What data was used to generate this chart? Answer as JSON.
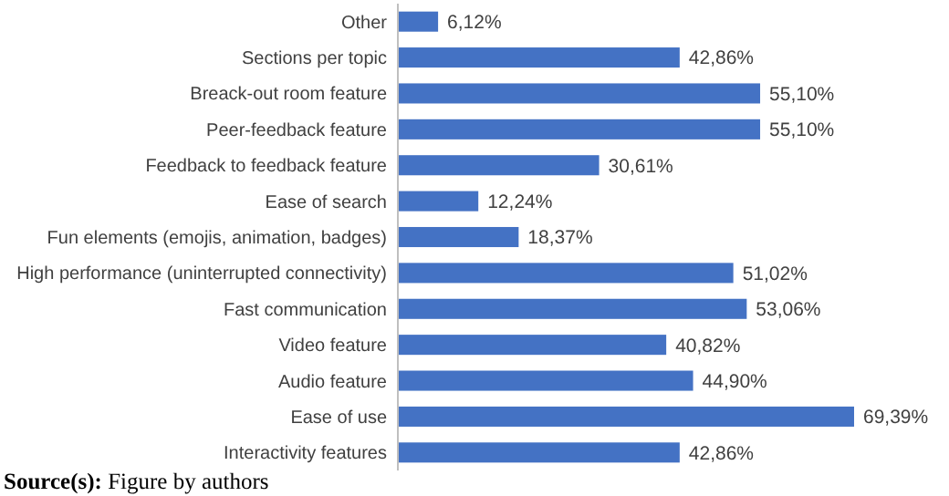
{
  "chart_data": {
    "type": "bar",
    "orientation": "horizontal",
    "categories": [
      "Other",
      "Sections per topic",
      "Breack-out room feature",
      "Peer-feedback feature",
      "Feedback to feedback feature",
      "Ease of search",
      "Fun elements (emojis, animation, badges)",
      "High performance (uninterrupted connectivity)",
      "Fast communication",
      "Video feature",
      "Audio feature",
      "Ease of use",
      "Interactivity features"
    ],
    "values": [
      6.12,
      42.86,
      55.1,
      55.1,
      30.61,
      12.24,
      18.37,
      51.02,
      53.06,
      40.82,
      44.9,
      69.39,
      42.86
    ],
    "value_labels": [
      "6,12%",
      "42,86%",
      "55,10%",
      "55,10%",
      "30,61%",
      "12,24%",
      "18,37%",
      "51,02%",
      "53,06%",
      "40,82%",
      "44,90%",
      "69,39%",
      "42,86%"
    ],
    "color": "#4472c4",
    "annotations": [
      "Source(s): Figure by authors"
    ]
  }
}
